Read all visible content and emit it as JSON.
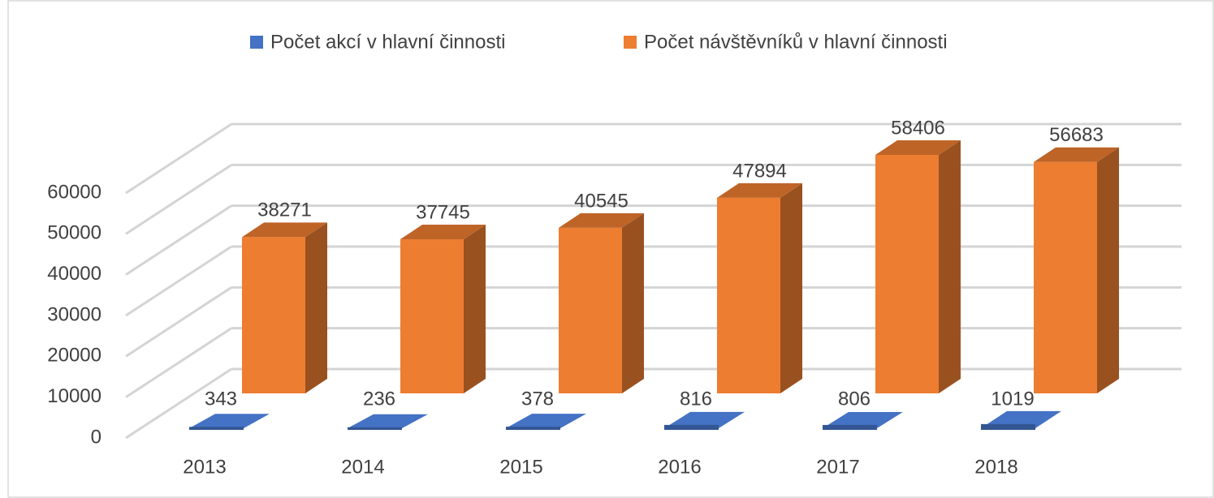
{
  "chart_data": {
    "type": "bar3d",
    "categories": [
      "2013",
      "2014",
      "2015",
      "2016",
      "2017",
      "2018"
    ],
    "series": [
      {
        "name": "Počet akcí v hlavní činnosti",
        "color": "#4472c4",
        "values": [
          343,
          236,
          378,
          816,
          806,
          1019
        ]
      },
      {
        "name": "Počet návštěvníků v hlavní činnosti",
        "color": "#ed7d31",
        "values": [
          38271,
          37745,
          40545,
          47894,
          58406,
          56683
        ]
      }
    ],
    "ylim": [
      0,
      60000
    ],
    "yticks": [
      0,
      10000,
      20000,
      30000,
      40000,
      50000,
      60000
    ],
    "grid": true
  }
}
